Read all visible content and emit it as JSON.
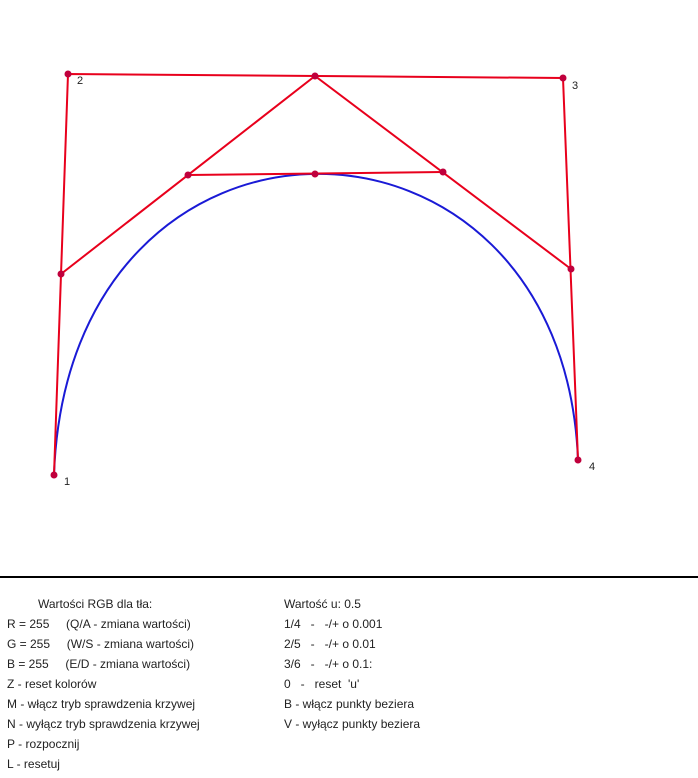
{
  "colors": {
    "background": "#ffffff",
    "control_polygon": "#e8001c",
    "curve": "#1a1ad6",
    "point": "#c0003c",
    "divider": "#000000"
  },
  "point_labels": [
    "1",
    "2",
    "3",
    "4"
  ],
  "left_column": {
    "title": "Wartości RGB dla tła:",
    "lines": [
      "R = 255     (Q/A - zmiana wartości)",
      "G = 255     (W/S - zmiana wartości)",
      "B = 255     (E/D - zmiana wartości)",
      "Z - reset kolorów",
      "M - włącz tryb sprawdzenia krzywej",
      "N - wyłącz tryb sprawdzenia krzywej",
      "P - rozpocznij",
      "L - resetuj"
    ]
  },
  "right_column": {
    "title": "Wartość u: 0.5",
    "lines": [
      "1/4   -   -/+ o 0.001",
      "2/5   -   -/+ o 0.01",
      "3/6   -   -/+ o 0.1:",
      "0   -   reset  'u'",
      "B - włącz punkty beziera",
      "V - wyłącz punkty beziera"
    ]
  }
}
